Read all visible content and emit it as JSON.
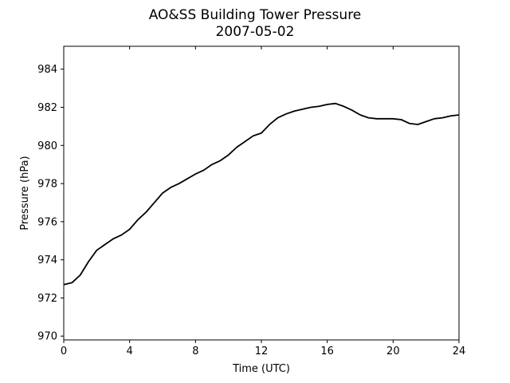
{
  "chart_data": {
    "type": "line",
    "title": "AO&SS Building Tower Pressure",
    "subtitle": "2007-05-02",
    "xlabel": "Time (UTC)",
    "ylabel": "Pressure (hPa)",
    "xlim": [
      0,
      24
    ],
    "ylim": [
      969.8,
      985.2
    ],
    "xticks": [
      0,
      4,
      8,
      12,
      16,
      20,
      24
    ],
    "yticks": [
      970,
      972,
      974,
      976,
      978,
      980,
      982,
      984
    ],
    "grid": false,
    "series": [
      {
        "color": "#000000",
        "x": [
          0,
          0.5,
          1.0,
          1.5,
          2.0,
          2.5,
          3.0,
          3.5,
          4.0,
          4.5,
          5.0,
          5.5,
          6.0,
          6.5,
          7.0,
          7.5,
          8.0,
          8.5,
          9.0,
          9.5,
          10.0,
          10.5,
          11.0,
          11.5,
          12.0,
          12.5,
          13.0,
          13.5,
          14.0,
          14.5,
          15.0,
          15.5,
          16.0,
          16.5,
          17.0,
          17.5,
          18.0,
          18.5,
          19.0,
          19.5,
          20.0,
          20.5,
          21.0,
          21.5,
          22.0,
          22.5,
          23.0,
          23.5,
          24.0
        ],
        "y": [
          972.7,
          972.8,
          973.2,
          973.9,
          974.5,
          974.8,
          975.1,
          975.3,
          975.6,
          976.1,
          976.5,
          977.0,
          977.5,
          977.8,
          978.0,
          978.25,
          978.5,
          978.7,
          979.0,
          979.2,
          979.5,
          979.9,
          980.2,
          980.5,
          980.65,
          981.1,
          981.45,
          981.65,
          981.8,
          981.9,
          982.0,
          982.05,
          982.15,
          982.2,
          982.05,
          981.85,
          981.6,
          981.45,
          981.4,
          981.4,
          981.4,
          981.35,
          981.15,
          981.1,
          981.25,
          981.4,
          981.45,
          981.55,
          981.6
        ]
      }
    ]
  }
}
